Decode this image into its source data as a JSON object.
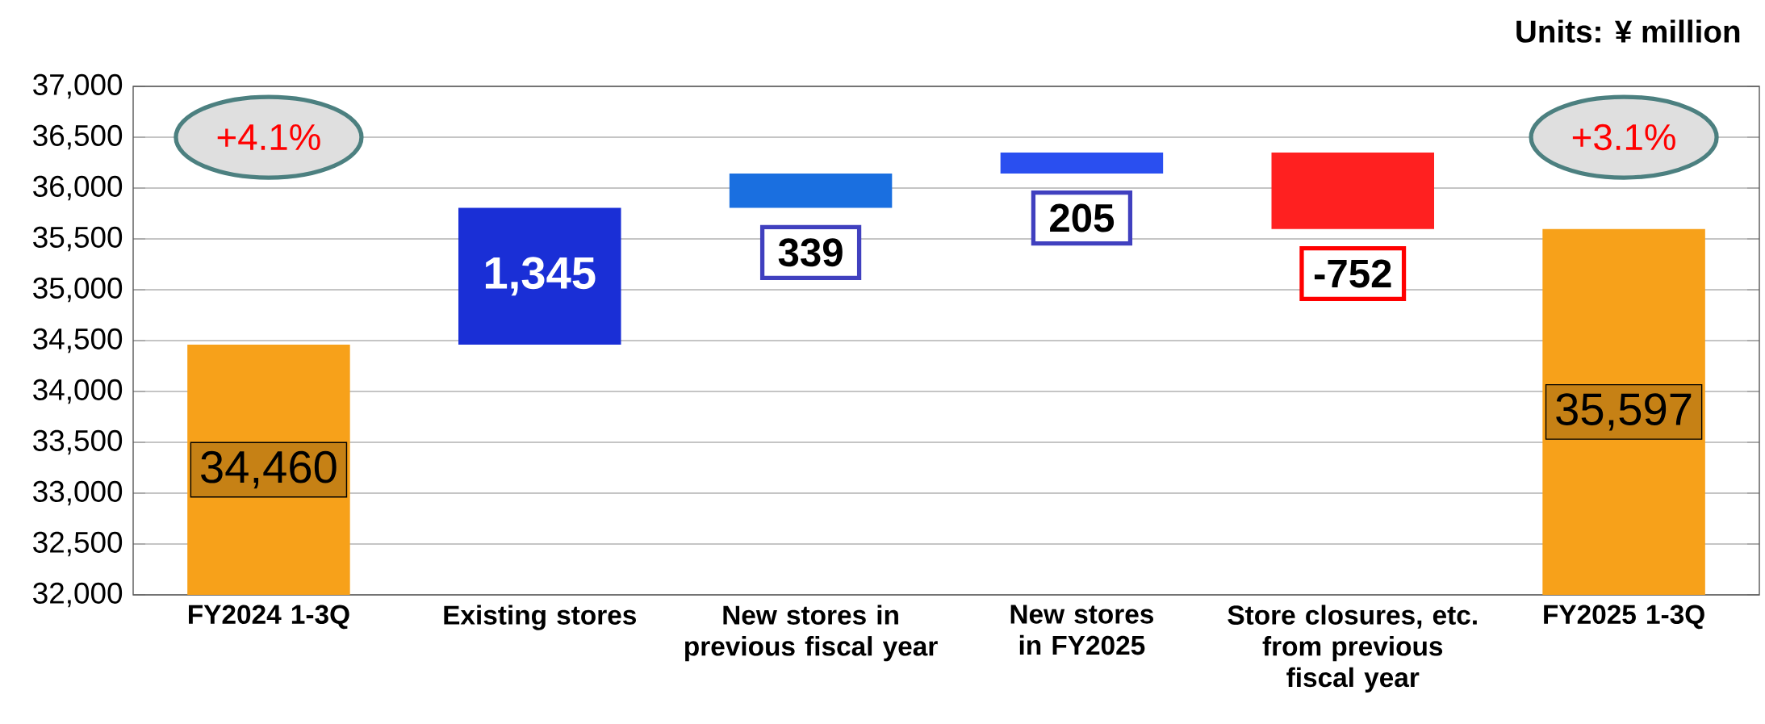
{
  "chart_data": {
    "type": "bar",
    "categories": [
      "FY2024 1-3Q",
      "Existing stores",
      "New stores in previous fiscal year",
      "New stores in FY2025",
      "Store closures, etc. from previous fiscal year",
      "FY2025 1-3Q"
    ],
    "values": [
      34460,
      1345,
      339,
      205,
      -752,
      35597
    ],
    "base": [
      null,
      34460,
      35805,
      36144,
      36349,
      null
    ],
    "colors": [
      "#f7a11a",
      "#1a2fd6",
      "#1a6fe0",
      "#2a4ff0",
      "#ff2020",
      "#f7a11a"
    ],
    "value_labels": [
      "34,460",
      "1,345",
      "339",
      "205",
      "-752",
      "35,597"
    ],
    "ylim": [
      32000,
      37000
    ],
    "yticks": [
      {
        "value": 32000,
        "label": "32,000"
      },
      {
        "value": 32500,
        "label": "32,500"
      },
      {
        "value": 33000,
        "label": "33,000"
      },
      {
        "value": 33500,
        "label": "33,500"
      },
      {
        "value": 34000,
        "label": "34,000"
      },
      {
        "value": 34500,
        "label": "34,500"
      },
      {
        "value": 35000,
        "label": "35,000"
      },
      {
        "value": 35500,
        "label": "35,500"
      },
      {
        "value": 36000,
        "label": "36,000"
      },
      {
        "value": 36500,
        "label": "36,500"
      },
      {
        "value": 37000,
        "label": "37,000"
      }
    ],
    "grid": "y",
    "annotations": [
      "+4.1%",
      "+3.1%",
      "Units: ¥ million"
    ]
  }
}
